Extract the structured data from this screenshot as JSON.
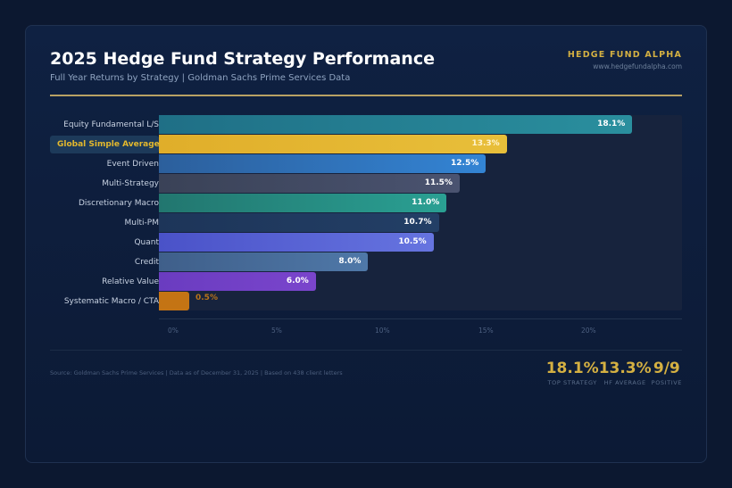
{
  "header": {
    "title": "2025 Hedge Fund Strategy Performance",
    "subtitle": "Full Year Returns by Strategy | Goldman Sachs Prime Services Data",
    "brand_name": "HEDGE FUND ALPHA",
    "brand_url": "www.hedgefundalpha.com"
  },
  "chart_data": {
    "type": "bar",
    "orientation": "horizontal",
    "title": "2025 Hedge Fund Strategy Performance",
    "xlabel": "",
    "ylabel": "",
    "unit": "%",
    "highlight": "Global Simple Average",
    "categories": [
      "Equity Fundamental L/S",
      "Global Simple Average",
      "Event Driven",
      "Multi-Strategy",
      "Discretionary Macro",
      "Multi-PM",
      "Quant",
      "Credit",
      "Relative Value",
      "Systematic Macro / CTA"
    ],
    "values": [
      18.1,
      13.3,
      12.5,
      11.5,
      11.0,
      10.7,
      10.5,
      8.0,
      6.0,
      0.5
    ],
    "value_labels": [
      "18.1%",
      "13.3%",
      "12.5%",
      "11.5%",
      "11.0%",
      "10.7%",
      "10.5%",
      "8.0%",
      "6.0%",
      "0.5%"
    ],
    "colors": [
      [
        "#1f6f86",
        "#2a8f9e"
      ],
      [
        "#e0ae2a",
        "#e8bf3a"
      ],
      [
        "#2c5f9c",
        "#3384d4"
      ],
      [
        "#3a4257",
        "#4a5370"
      ],
      [
        "#22766f",
        "#2aa093"
      ],
      [
        "#1d3559",
        "#233f66"
      ],
      [
        "#4a52c8",
        "#6674e0"
      ],
      [
        "#3f5f8a",
        "#4f78a8"
      ],
      [
        "#6a3cc0",
        "#7a45cc"
      ],
      [
        "#c47414",
        "#c47414"
      ]
    ],
    "x_ticks": [
      "0%",
      "5%",
      "10%",
      "15%",
      "20%"
    ],
    "xlim": [
      0,
      20
    ],
    "grid": false,
    "legend": "none"
  },
  "footer": {
    "source": "Source: Goldman Sachs Prime Services | Data as of December 31, 2025 | Based on 438 client letters",
    "stats": [
      {
        "value": "18.1%",
        "label": "TOP STRATEGY"
      },
      {
        "value": "13.3%",
        "label": "HF AVERAGE"
      },
      {
        "value": "9/9",
        "label": "POSITIVE"
      }
    ]
  }
}
